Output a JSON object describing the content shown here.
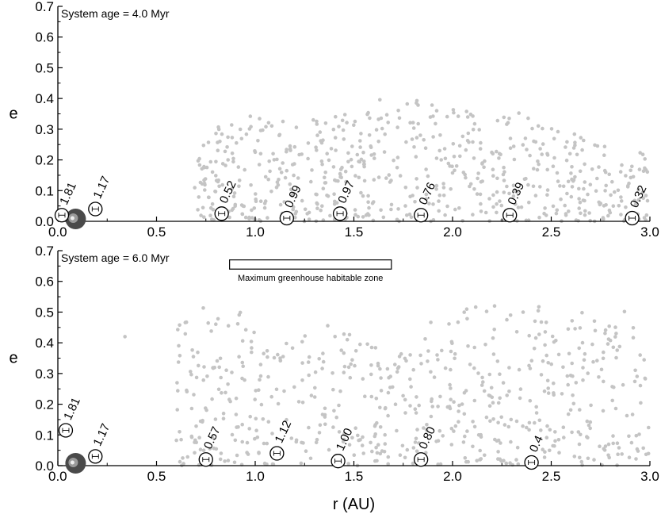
{
  "chart_data": [
    {
      "type": "scatter",
      "annotation": "System age = 4.0 Myr",
      "xlabel": "",
      "ylabel": "e",
      "xlim": [
        0.0,
        3.0
      ],
      "ylim": [
        0.0,
        0.7
      ],
      "xticks": [
        "0.0",
        "0.5",
        "1.0",
        "1.5",
        "2.0",
        "2.5",
        "3.0"
      ],
      "yticks": [
        "0.0",
        "0.1",
        "0.2",
        "0.3",
        "0.4",
        "0.5",
        "0.6",
        "0.7"
      ],
      "grid": false,
      "colors": {
        "particles": "#c4c4c4",
        "star": "#4a4a4a",
        "planet_fill": "#ffffff",
        "planet_stroke": "#000000"
      },
      "star": {
        "x": 0.09,
        "y": 0.0
      },
      "planets": [
        {
          "x": 0.02,
          "y": 0.02,
          "label": "1.81"
        },
        {
          "x": 0.19,
          "y": 0.04,
          "label": "1.17"
        },
        {
          "x": 0.83,
          "y": 0.025,
          "label": "0.52"
        },
        {
          "x": 1.16,
          "y": 0.01,
          "label": "0.99"
        },
        {
          "x": 1.43,
          "y": 0.025,
          "label": "0.97"
        },
        {
          "x": 1.84,
          "y": 0.02,
          "label": "0.76"
        },
        {
          "x": 2.29,
          "y": 0.02,
          "label": "0.39"
        },
        {
          "x": 2.91,
          "y": 0.01,
          "label": "0.32"
        }
      ],
      "particles": {
        "x_range": [
          0.67,
          3.0
        ],
        "count": 640,
        "seed": 4,
        "e_max_profile": [
          [
            0.67,
            0.22
          ],
          [
            0.9,
            0.36
          ],
          [
            1.2,
            0.32
          ],
          [
            1.5,
            0.36
          ],
          [
            1.75,
            0.43
          ],
          [
            2.05,
            0.37
          ],
          [
            2.4,
            0.35
          ],
          [
            2.7,
            0.26
          ],
          [
            3.0,
            0.22
          ]
        ]
      }
    },
    {
      "type": "scatter",
      "annotation": "System age = 6.0 Myr",
      "xlabel": "r (AU)",
      "ylabel": "e",
      "xlim": [
        0.0,
        3.0
      ],
      "ylim": [
        0.0,
        0.7
      ],
      "xticks": [
        "0.0",
        "0.5",
        "1.0",
        "1.5",
        "2.0",
        "2.5",
        "3.0"
      ],
      "yticks": [
        "0.0",
        "0.1",
        "0.2",
        "0.3",
        "0.4",
        "0.5",
        "0.6",
        "0.7"
      ],
      "grid": false,
      "colors": {
        "particles": "#c4c4c4",
        "star": "#4a4a4a",
        "planet_fill": "#ffffff",
        "planet_stroke": "#000000"
      },
      "star": {
        "x": 0.09,
        "y": 0.0
      },
      "habitable_zone": {
        "label": "Maximum greenhouse habitable zone",
        "x_range": [
          0.87,
          1.69
        ],
        "y_range": [
          0.64,
          0.67
        ]
      },
      "planets": [
        {
          "x": 0.04,
          "y": 0.115,
          "label": "1.81"
        },
        {
          "x": 0.19,
          "y": 0.03,
          "label": "1.17"
        },
        {
          "x": 0.75,
          "y": 0.02,
          "label": "0.57"
        },
        {
          "x": 1.11,
          "y": 0.04,
          "label": "1.12"
        },
        {
          "x": 1.42,
          "y": 0.015,
          "label": "1.00"
        },
        {
          "x": 1.84,
          "y": 0.02,
          "label": "0.80"
        },
        {
          "x": 2.4,
          "y": 0.005,
          "label": "0.4"
        }
      ],
      "isolated_particles": [
        {
          "x": 0.34,
          "y": 0.42
        }
      ],
      "particles": {
        "x_range": [
          0.6,
          3.0
        ],
        "count": 620,
        "seed": 6,
        "e_max_profile": [
          [
            0.6,
            0.46
          ],
          [
            0.8,
            0.55
          ],
          [
            1.1,
            0.45
          ],
          [
            1.4,
            0.46
          ],
          [
            1.7,
            0.36
          ],
          [
            2.0,
            0.53
          ],
          [
            2.5,
            0.54
          ],
          [
            2.9,
            0.51
          ],
          [
            3.0,
            0.3
          ]
        ]
      }
    }
  ]
}
